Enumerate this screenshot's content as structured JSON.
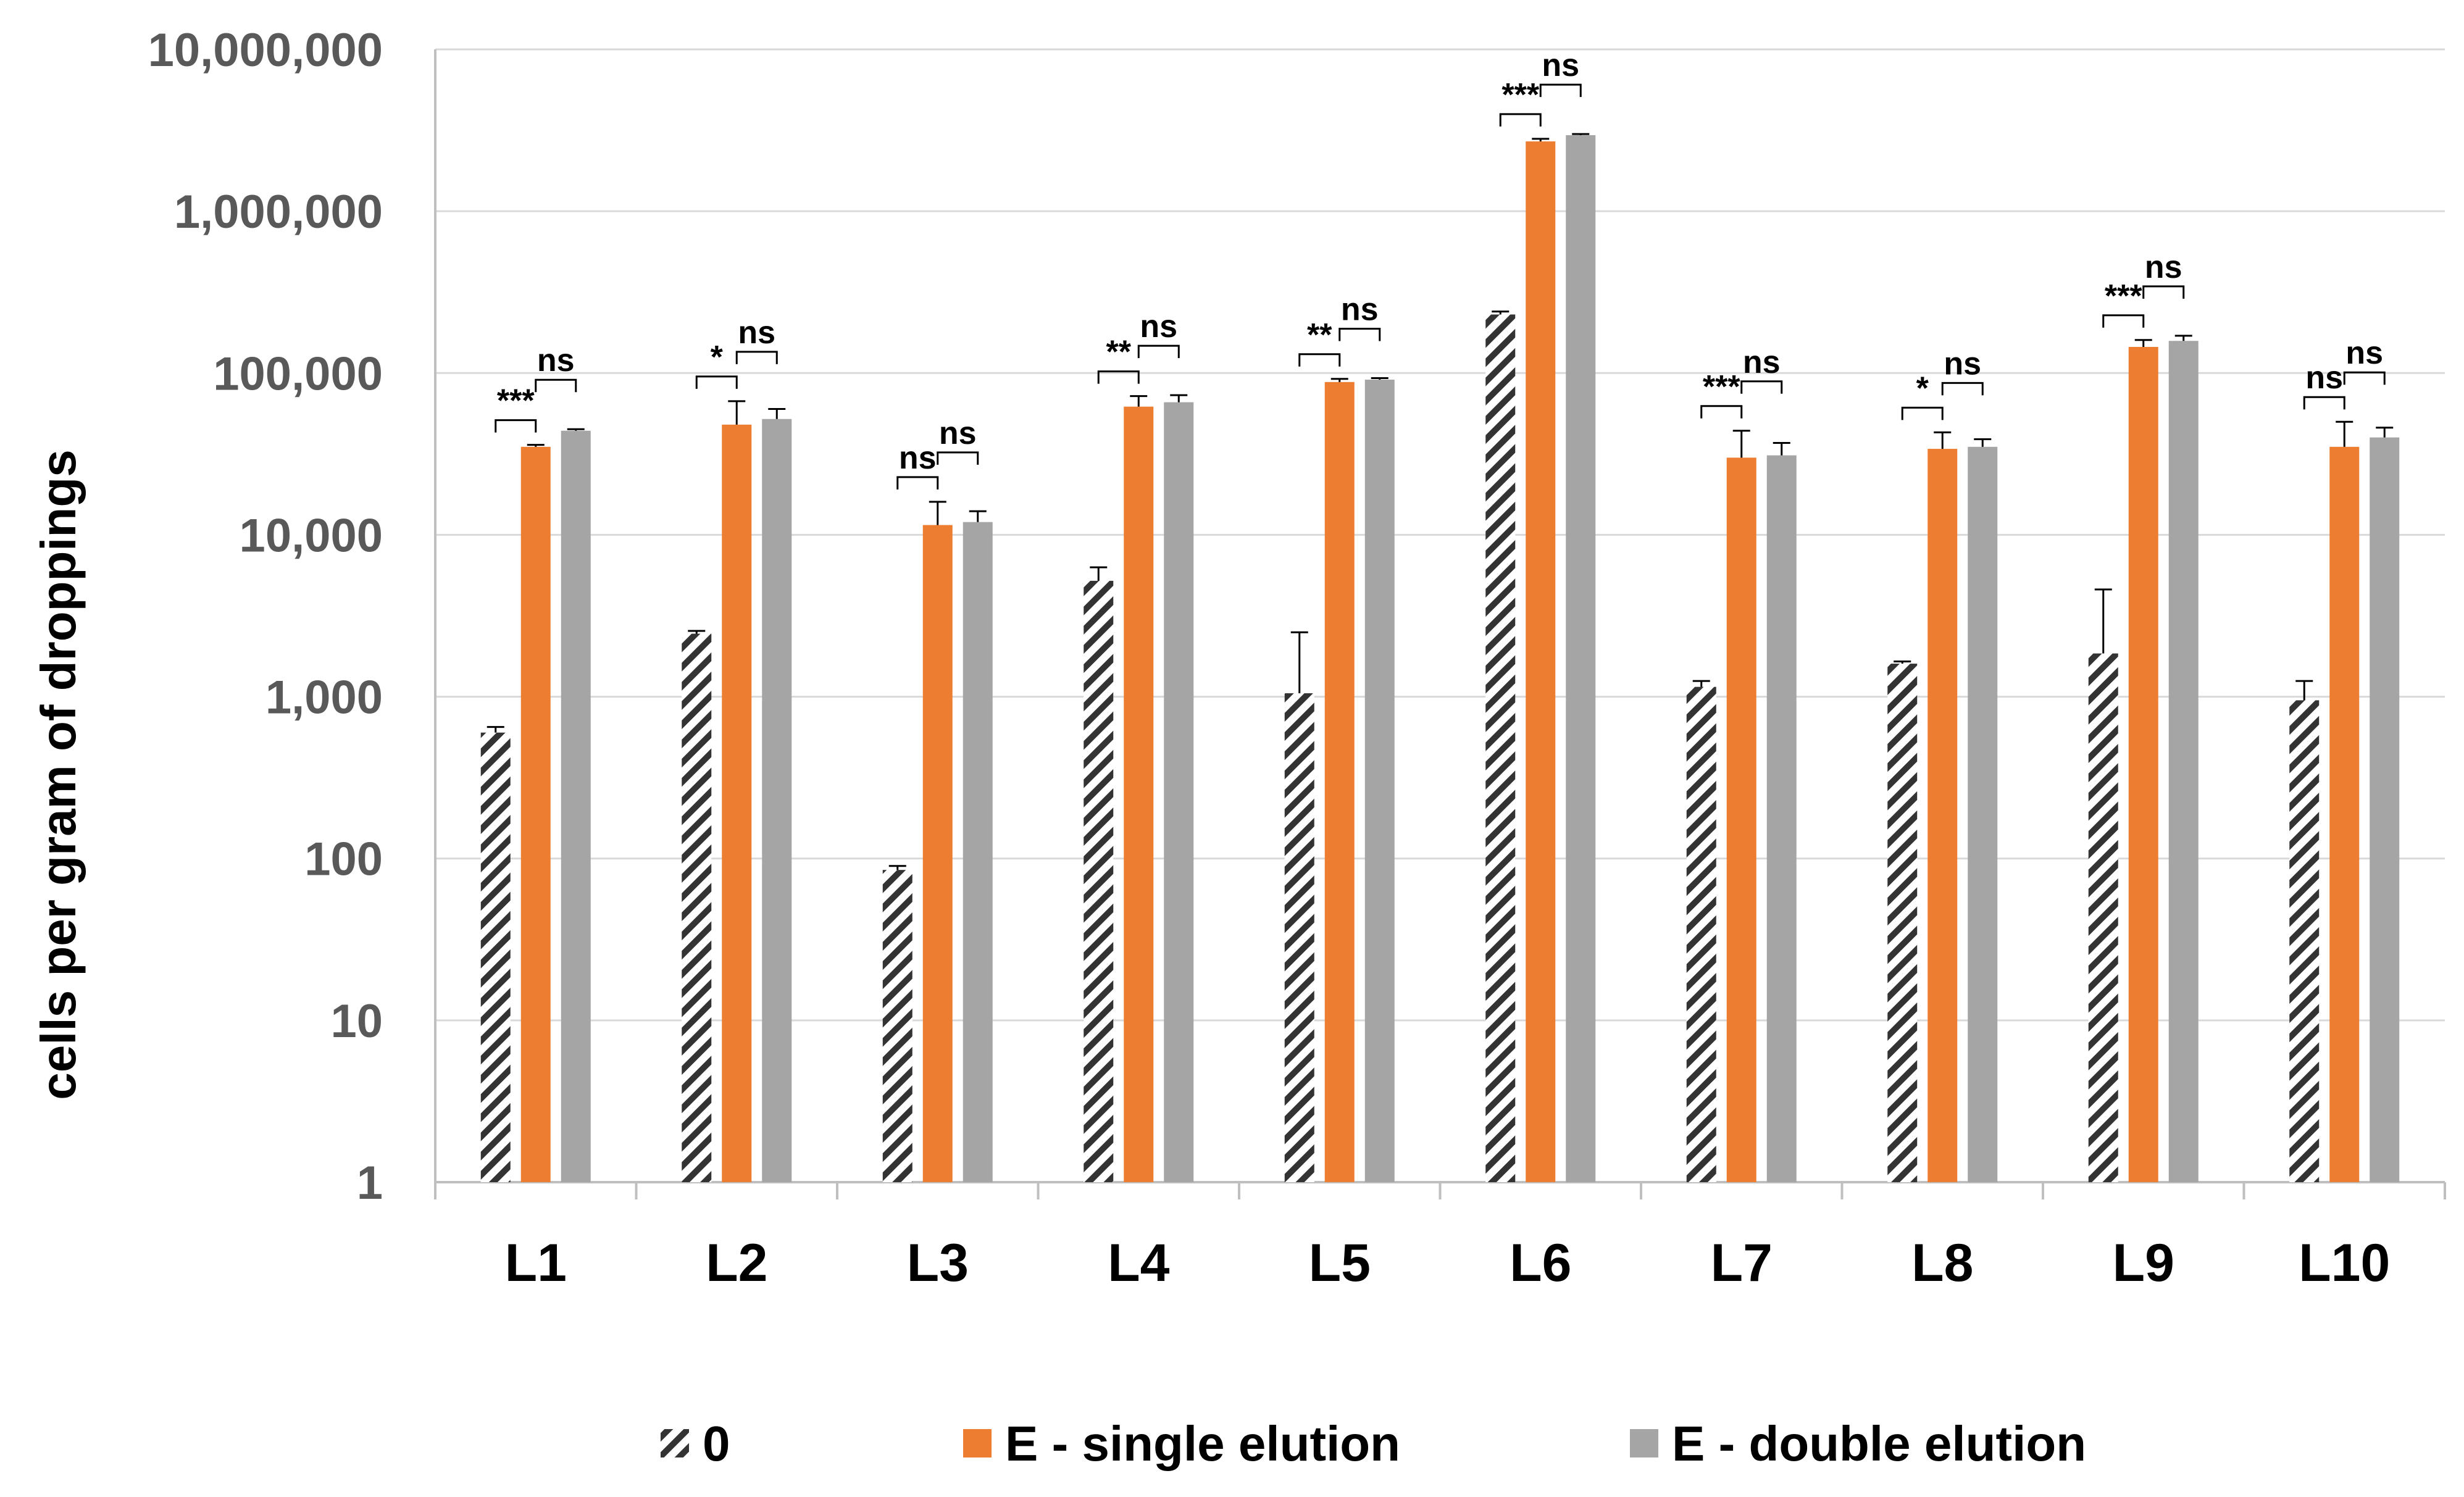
{
  "chart_data": {
    "type": "bar",
    "title": "",
    "xlabel": "",
    "ylabel": "cells per gram of droppings",
    "yscale": "log",
    "ylim": [
      1,
      10000000
    ],
    "yticks": [
      "1",
      "10",
      "100",
      "1,000",
      "10,000",
      "100,000",
      "1,000,000",
      "10,000,000"
    ],
    "categories": [
      "L1",
      "L2",
      "L3",
      "L4",
      "L5",
      "L6",
      "L7",
      "L8",
      "L9",
      "L10"
    ],
    "grid": true,
    "legend_position": "bottom",
    "series": [
      {
        "name": "0",
        "pattern": "diagonal-hatch",
        "color": "#333333",
        "values": [
          600,
          2450,
          85,
          5200,
          1050,
          230000,
          1150,
          1600,
          1850,
          950
        ],
        "errors": [
          650,
          2550,
          90,
          6300,
          2500,
          240000,
          1250,
          1650,
          4600,
          1250
        ]
      },
      {
        "name": "E - single elution",
        "color": "#ED7D31",
        "values": [
          35000,
          48000,
          11500,
          62000,
          88000,
          2700000,
          30000,
          34000,
          145000,
          35000
        ],
        "errors": [
          36000,
          67000,
          16000,
          72000,
          92000,
          2800000,
          44000,
          43000,
          160000,
          50000
        ]
      },
      {
        "name": "E - double elution",
        "color": "#A5A5A5",
        "values": [
          44000,
          52000,
          12000,
          66000,
          91000,
          2950000,
          31000,
          35000,
          158000,
          40000
        ],
        "errors": [
          45000,
          60000,
          14000,
          73000,
          93000,
          3000000,
          37000,
          39000,
          170000,
          46000
        ]
      }
    ],
    "significance": [
      {
        "category": "L1",
        "first": "***",
        "second": "ns"
      },
      {
        "category": "L2",
        "first": "*",
        "second": "ns"
      },
      {
        "category": "L3",
        "first": "ns",
        "second": "ns"
      },
      {
        "category": "L4",
        "first": "**",
        "second": "ns"
      },
      {
        "category": "L5",
        "first": "**",
        "second": "ns"
      },
      {
        "category": "L6",
        "first": "***",
        "second": "ns"
      },
      {
        "category": "L7",
        "first": "***",
        "second": "ns"
      },
      {
        "category": "L8",
        "first": "*",
        "second": "ns"
      },
      {
        "category": "L9",
        "first": "***",
        "second": "ns"
      },
      {
        "category": "L10",
        "first": "ns",
        "second": "ns"
      }
    ]
  }
}
